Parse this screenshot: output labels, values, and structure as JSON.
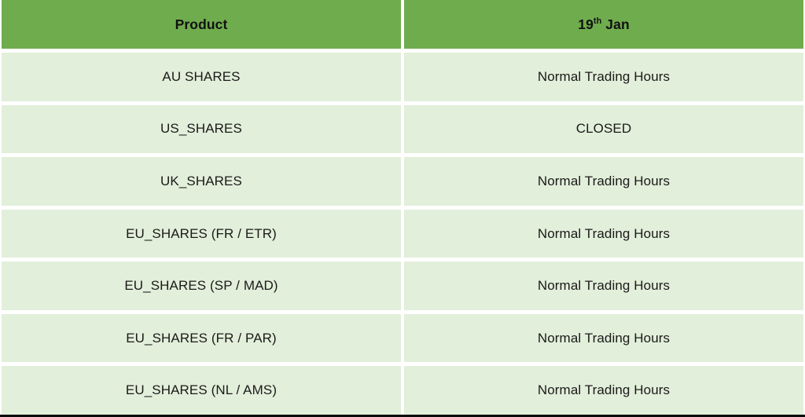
{
  "theme": {
    "header_bg": "#6FAC4D",
    "row_bg": "#E2EFDA",
    "gap_color": "#FFFFFF",
    "text_color": "#1A1A1A",
    "header_text": "#111111",
    "edge_color": "#0A0A0A"
  },
  "table": {
    "header": {
      "product_label": "Product",
      "date": {
        "day": "19",
        "ordinal": "th",
        "month": " Jan"
      }
    },
    "rows": [
      {
        "product": "AU SHARES",
        "status": "Normal Trading Hours"
      },
      {
        "product": "US_SHARES",
        "status": "CLOSED"
      },
      {
        "product": "UK_SHARES",
        "status": "Normal Trading Hours"
      },
      {
        "product": "EU_SHARES (FR / ETR)",
        "status": "Normal Trading Hours"
      },
      {
        "product": "EU_SHARES (SP / MAD)",
        "status": "Normal Trading Hours"
      },
      {
        "product": "EU_SHARES (FR / PAR)",
        "status": "Normal Trading Hours"
      },
      {
        "product": "EU_SHARES (NL / AMS)",
        "status": "Normal Trading Hours"
      }
    ]
  },
  "chart_data": {
    "type": "table",
    "title": "",
    "columns": [
      "Product",
      "19th Jan"
    ],
    "rows": [
      [
        "AU SHARES",
        "Normal Trading Hours"
      ],
      [
        "US_SHARES",
        "CLOSED"
      ],
      [
        "UK_SHARES",
        "Normal Trading Hours"
      ],
      [
        "EU_SHARES (FR / ETR)",
        "Normal Trading Hours"
      ],
      [
        "EU_SHARES (SP / MAD)",
        "Normal Trading Hours"
      ],
      [
        "EU_SHARES (FR / PAR)",
        "Normal Trading Hours"
      ],
      [
        "EU_SHARES (NL / AMS)",
        "Normal Trading Hours"
      ]
    ],
    "layout": {
      "header_fill": "#6FAC4D",
      "body_fill": "#E2EFDA",
      "grid": "white gaps between cells"
    }
  }
}
